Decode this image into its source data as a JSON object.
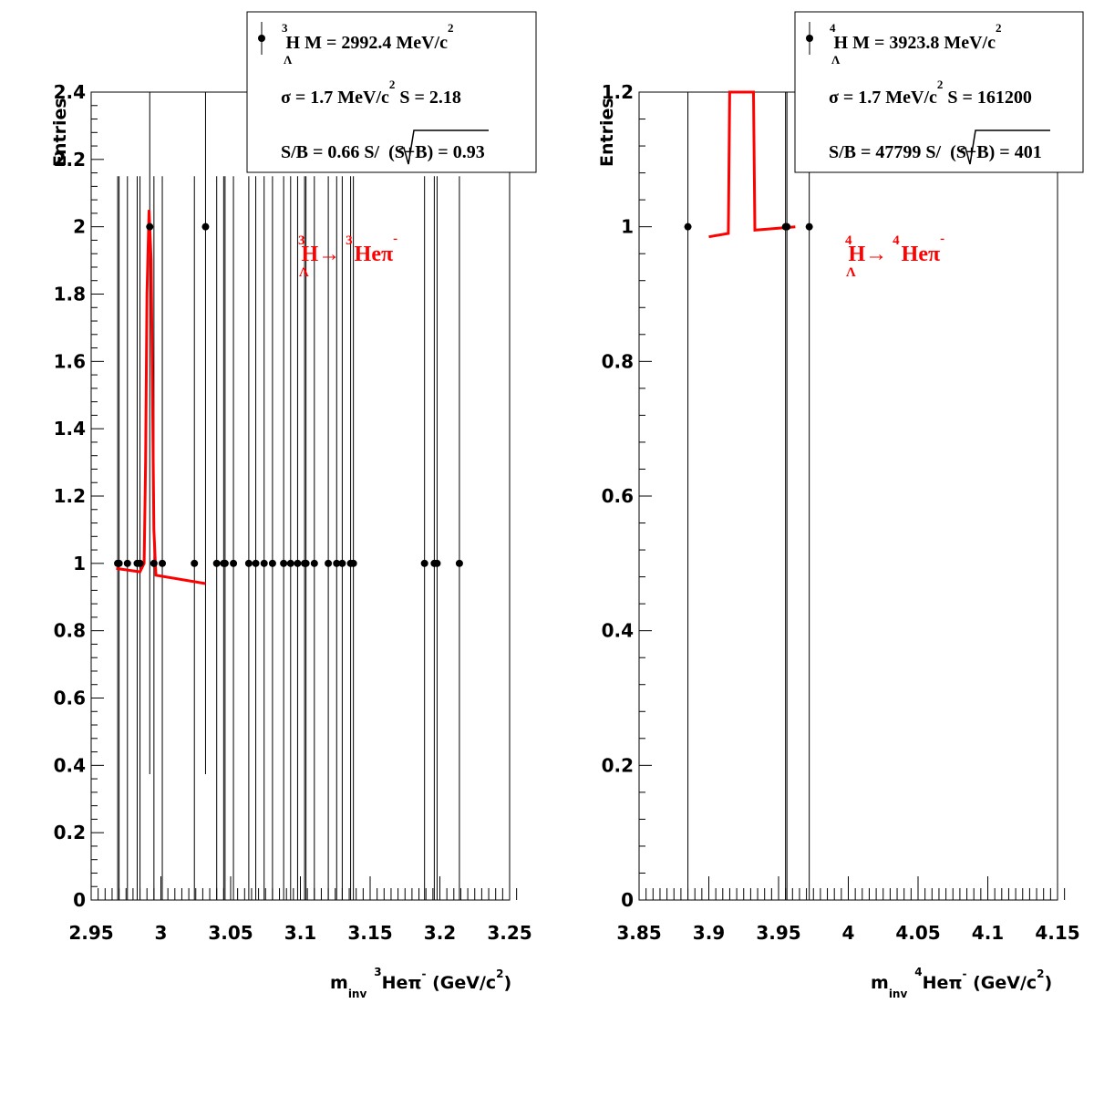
{
  "chart_data": [
    {
      "type": "scatter",
      "ylabel": "Entries",
      "xlabel": {
        "pre": "m",
        "sub": "inv",
        "sup1": "3",
        "mid": "Heπ",
        "sup2": "-",
        "post": " (GeV/c",
        "sup3": "2",
        "close": ")"
      },
      "xlim": [
        2.95,
        3.25
      ],
      "ylim": [
        0,
        2.4
      ],
      "x_ticks": [
        "2.95",
        "3",
        "3.05",
        "3.1",
        "3.15",
        "3.2",
        "3.25"
      ],
      "y_ticks": [
        "0",
        "0.2",
        "0.4",
        "0.6",
        "0.8",
        "1",
        "1.2",
        "1.4",
        "1.6",
        "1.8",
        "2",
        "2.2",
        "2.4"
      ],
      "points": [
        {
          "x": 2.969,
          "y": 1
        },
        {
          "x": 2.97,
          "y": 1
        },
        {
          "x": 2.976,
          "y": 1
        },
        {
          "x": 2.983,
          "y": 1
        },
        {
          "x": 2.985,
          "y": 1
        },
        {
          "x": 2.992,
          "y": 2
        },
        {
          "x": 2.995,
          "y": 1
        },
        {
          "x": 3.001,
          "y": 1
        },
        {
          "x": 3.024,
          "y": 1
        },
        {
          "x": 3.032,
          "y": 2
        },
        {
          "x": 3.04,
          "y": 1
        },
        {
          "x": 3.045,
          "y": 1
        },
        {
          "x": 3.046,
          "y": 1
        },
        {
          "x": 3.052,
          "y": 1
        },
        {
          "x": 3.063,
          "y": 1
        },
        {
          "x": 3.068,
          "y": 1
        },
        {
          "x": 3.074,
          "y": 1
        },
        {
          "x": 3.08,
          "y": 1
        },
        {
          "x": 3.088,
          "y": 1
        },
        {
          "x": 3.093,
          "y": 1
        },
        {
          "x": 3.098,
          "y": 1
        },
        {
          "x": 3.103,
          "y": 1
        },
        {
          "x": 3.104,
          "y": 1
        },
        {
          "x": 3.11,
          "y": 1
        },
        {
          "x": 3.12,
          "y": 1
        },
        {
          "x": 3.126,
          "y": 1
        },
        {
          "x": 3.13,
          "y": 1
        },
        {
          "x": 3.136,
          "y": 1
        },
        {
          "x": 3.138,
          "y": 1
        },
        {
          "x": 3.189,
          "y": 1
        },
        {
          "x": 3.196,
          "y": 1
        },
        {
          "x": 3.198,
          "y": 1
        },
        {
          "x": 3.214,
          "y": 1
        }
      ],
      "fit": [
        [
          2.968,
          0.985
        ],
        [
          2.985,
          0.975
        ],
        [
          2.988,
          1.0
        ],
        [
          2.989,
          1.3
        ],
        [
          2.99,
          1.8
        ],
        [
          2.9915,
          2.05
        ],
        [
          2.993,
          1.9
        ],
        [
          2.994,
          1.5
        ],
        [
          2.995,
          1.1
        ],
        [
          2.996,
          1.0
        ],
        [
          2.9965,
          0.965
        ],
        [
          3.032,
          0.94
        ]
      ],
      "stats": {
        "line1": {
          "sup": "3",
          "letter": "H",
          "sub": "Λ",
          "text": " M = 2992.4 MeV/c",
          "sup2": "2"
        },
        "line2": {
          "text": "σ = 1.7 MeV/c",
          "sup": "2",
          "text2": " S = 2.18"
        },
        "line3": {
          "text": "S/B = 0.66  S/",
          "root": "(S+B)",
          "text2": " = 0.93"
        }
      },
      "decay": {
        "sup1": "3",
        "letter": "H",
        "sub": "Λ",
        "arrow": "→ ",
        "sup2": "3",
        "prod": "Heπ",
        "sup3": "-"
      },
      "colors": {
        "fit": "#ff0000",
        "points": "#000000"
      }
    },
    {
      "type": "scatter",
      "ylabel": "Entries",
      "xlabel": {
        "pre": "m",
        "sub": "inv",
        "sup1": "4",
        "mid": "Heπ",
        "sup2": "-",
        "post": "  (GeV/c",
        "sup3": "2",
        "close": ")"
      },
      "xlim": [
        3.85,
        4.15
      ],
      "ylim": [
        0,
        1.2
      ],
      "x_ticks": [
        "3.85",
        "3.9",
        "3.95",
        "4",
        "4.05",
        "4.1",
        "4.15"
      ],
      "y_ticks": [
        "0",
        "0.2",
        "0.4",
        "0.6",
        "0.8",
        "1",
        "1.2"
      ],
      "points": [
        {
          "x": 3.885,
          "y": 1
        },
        {
          "x": 3.955,
          "y": 1
        },
        {
          "x": 3.956,
          "y": 1
        },
        {
          "x": 3.972,
          "y": 1
        }
      ],
      "fit": [
        [
          3.9,
          0.985
        ],
        [
          3.914,
          0.99
        ],
        [
          3.915,
          1.2
        ],
        [
          3.932,
          1.2
        ],
        [
          3.933,
          0.995
        ],
        [
          3.962,
          1.0
        ]
      ],
      "stats": {
        "line1": {
          "sup": "4",
          "letter": "H",
          "sub": "Λ",
          "text": " M = 3923.8 MeV/c",
          "sup2": "2"
        },
        "line2": {
          "text": "σ = 1.7 MeV/c",
          "sup": "2",
          "text2": " S = 161200"
        },
        "line3": {
          "text": "S/B = 47799  S/",
          "root": "(S+B)",
          "text2": " =  401"
        }
      },
      "decay": {
        "sup1": "4",
        "letter": "H",
        "sub": "Λ",
        "arrow": "→ ",
        "sup2": "4",
        "prod": "Heπ",
        "sup3": "-"
      },
      "colors": {
        "fit": "#ff0000",
        "points": "#000000"
      }
    }
  ]
}
